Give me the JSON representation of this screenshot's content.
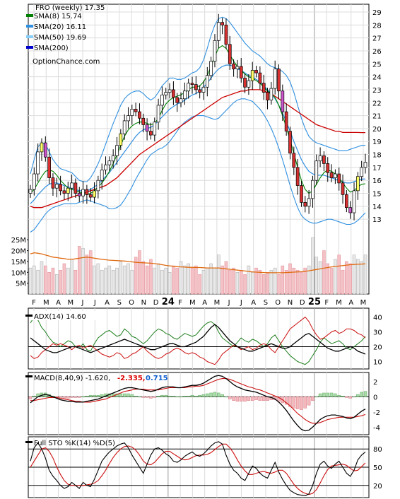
{
  "chart_data": {
    "type": "line",
    "title": "FRO (weekly) 17.35",
    "watermark": "OptionChance.com",
    "price_panel": {
      "legend": [
        {
          "label": "SMA(8) 15.74",
          "color": "#008000"
        },
        {
          "label": "SMA(20) 16.11",
          "color": "#2f8fe0"
        },
        {
          "label": "SMA(50) 19.69",
          "color": "#87cefa"
        },
        {
          "label": "SMA(200)",
          "color": "#0000cc"
        }
      ],
      "y_ticks": [
        "29",
        "28",
        "27",
        "26",
        "25",
        "24",
        "23",
        "22",
        "21",
        "20",
        "19",
        "18",
        "17",
        "16",
        "15",
        "14",
        "13"
      ],
      "x_labels": [
        "F",
        "M",
        "A",
        "M",
        "J",
        "J",
        "A",
        "S",
        "O",
        "N",
        "D",
        "24",
        "F",
        "M",
        "A",
        "M",
        "J",
        "J",
        "A",
        "S",
        "O",
        "N",
        "D",
        "25",
        "F",
        "M",
        "A",
        "M"
      ],
      "close_path": [
        15.3,
        16.5,
        18.2,
        18.9,
        17.8,
        16.2,
        15.4,
        15.7,
        15.2,
        15.0,
        15.4,
        15.8,
        15.0,
        14.8,
        15.3,
        14.9,
        14.7,
        15.2,
        16.0,
        16.8,
        17.2,
        17.5,
        17.9,
        18.7,
        19.6,
        20.6,
        21.0,
        21.5,
        21.3,
        20.8,
        20.3,
        19.8,
        19.5,
        20.5,
        21.8,
        22.6,
        22.8,
        23.0,
        22.4,
        22.0,
        22.3,
        22.9,
        23.5,
        23.4,
        23.0,
        22.8,
        23.2,
        24.1,
        25.2,
        26.8,
        28.2,
        28.0,
        26.5,
        25.0,
        24.6,
        24.8,
        23.9,
        23.2,
        23.7,
        24.5,
        24.3,
        23.5,
        22.8,
        22.2,
        23.1,
        24.6,
        22.9,
        21.3,
        19.8,
        18.1,
        17.0,
        15.6,
        14.3,
        14.0,
        14.6,
        16.0,
        17.5,
        17.9,
        17.3,
        16.6,
        16.2,
        16.5,
        15.8,
        14.9,
        13.9,
        13.5,
        15.2,
        16.3,
        17.0,
        17.4
      ],
      "sma8": [
        15.0,
        15.3,
        15.8,
        16.3,
        16.7,
        16.8,
        16.7,
        16.4,
        16.0,
        15.7,
        15.4,
        15.3,
        15.2,
        15.1,
        15.0,
        14.9,
        15.0,
        15.2,
        15.5,
        15.8,
        16.2,
        16.7,
        17.3,
        18.0,
        18.7,
        19.4,
        19.9,
        20.2,
        20.4,
        20.5,
        20.5,
        20.4,
        20.3,
        20.4,
        20.8,
        21.4,
        21.9,
        22.2,
        22.4,
        22.5,
        22.6,
        22.8,
        23.0,
        23.2,
        23.2,
        23.3,
        23.6,
        24.1,
        24.8,
        25.6,
        26.2,
        26.4,
        26.2,
        25.7,
        25.2,
        24.8,
        24.5,
        24.2,
        24.0,
        23.9,
        23.7,
        23.5,
        23.2,
        22.9,
        22.7,
        22.4,
        21.8,
        21.0,
        20.1,
        19.1,
        18.1,
        17.0,
        16.0,
        15.3,
        15.0,
        15.2,
        15.7,
        16.2,
        16.6,
        16.8,
        16.7,
        16.5,
        16.2,
        15.8,
        15.4,
        15.1,
        15.2,
        15.5,
        15.7,
        15.74
      ],
      "sma20": [
        14.2,
        14.5,
        14.9,
        15.2,
        15.5,
        15.7,
        15.8,
        15.8,
        15.7,
        15.6,
        15.5,
        15.4,
        15.3,
        15.2,
        15.2,
        15.2,
        15.3,
        15.5,
        15.7,
        16.0,
        16.3,
        16.6,
        17.0,
        17.4,
        17.8,
        18.2,
        18.6,
        19.0,
        19.4,
        19.7,
        19.9,
        20.0,
        20.1,
        20.3,
        20.6,
        20.9,
        21.2,
        21.5,
        21.7,
        21.9,
        22.0,
        22.2,
        22.4,
        22.6,
        22.7,
        22.9,
        23.2,
        23.5,
        23.9,
        24.3,
        24.6,
        24.8,
        24.9,
        24.9,
        24.8,
        24.6,
        24.5,
        24.3,
        24.1,
        24.0,
        23.8,
        23.6,
        23.3,
        23.0,
        22.7,
        22.3,
        21.8,
        21.2,
        20.5,
        19.8,
        19.0,
        18.3,
        17.6,
        17.1,
        16.7,
        16.5,
        16.4,
        16.4,
        16.4,
        16.3,
        16.2,
        16.1,
        16.0,
        15.9,
        15.8,
        15.8,
        15.9,
        16.0,
        16.1,
        16.11
      ],
      "sma50": [
        14.0,
        13.9,
        13.9,
        13.9,
        14.0,
        14.1,
        14.2,
        14.3,
        14.4,
        14.5,
        14.6,
        14.7,
        14.8,
        14.9,
        15.0,
        15.1,
        15.2,
        15.3,
        15.4,
        15.5,
        15.6,
        15.8,
        16.0,
        16.2,
        16.5,
        16.8,
        17.1,
        17.4,
        17.7,
        18.0,
        18.2,
        18.4,
        18.6,
        18.8,
        19.0,
        19.2,
        19.4,
        19.6,
        19.8,
        20.0,
        20.2,
        20.4,
        20.6,
        20.8,
        21.0,
        21.2,
        21.4,
        21.6,
        21.8,
        22.0,
        22.2,
        22.4,
        22.5,
        22.6,
        22.7,
        22.8,
        22.9,
        22.9,
        23.0,
        23.0,
        23.0,
        23.0,
        22.9,
        22.8,
        22.7,
        22.5,
        22.3,
        22.1,
        21.9,
        21.7,
        21.5,
        21.3,
        21.1,
        20.9,
        20.7,
        20.5,
        20.3,
        20.2,
        20.1,
        20.0,
        19.9,
        19.8,
        19.8,
        19.7,
        19.7,
        19.7,
        19.7,
        19.7,
        19.69,
        19.69
      ],
      "bb_upper": [
        16.5,
        17.6,
        18.6,
        18.9,
        18.8,
        18.2,
        17.6,
        17.2,
        16.9,
        16.8,
        16.7,
        16.6,
        16.3,
        16.0,
        15.9,
        15.9,
        16.2,
        16.7,
        17.3,
        18.0,
        18.8,
        19.6,
        20.4,
        21.1,
        21.8,
        22.3,
        22.6,
        22.8,
        22.9,
        22.9,
        22.7,
        22.4,
        22.2,
        22.4,
        22.8,
        23.3,
        23.6,
        23.9,
        23.9,
        23.8,
        23.8,
        23.9,
        24.1,
        24.3,
        24.4,
        24.7,
        25.3,
        26.2,
        27.2,
        28.0,
        28.5,
        28.6,
        28.5,
        28.2,
        27.8,
        27.4,
        27.0,
        26.6,
        26.3,
        26.0,
        25.8,
        25.6,
        25.3,
        25.0,
        24.8,
        24.7,
        24.6,
        24.4,
        24.1,
        23.6,
        22.8,
        21.8,
        20.8,
        20.0,
        19.4,
        19.1,
        18.9,
        18.8,
        18.7,
        18.6,
        18.5,
        18.4,
        18.3,
        18.3,
        18.3,
        18.4,
        18.5,
        18.6,
        18.7,
        18.7
      ],
      "bb_lower": [
        12.0,
        12.2,
        12.6,
        13.0,
        13.4,
        13.7,
        13.9,
        14.0,
        14.1,
        14.2,
        14.2,
        14.2,
        14.2,
        14.3,
        14.4,
        14.5,
        14.4,
        14.3,
        14.2,
        14.1,
        14.0,
        13.8,
        13.8,
        13.9,
        14.1,
        14.5,
        15.0,
        15.5,
        16.1,
        16.6,
        17.1,
        17.6,
        18.0,
        18.2,
        18.4,
        18.5,
        18.7,
        19.0,
        19.4,
        19.8,
        20.2,
        20.5,
        20.7,
        20.9,
        21.0,
        21.0,
        21.0,
        20.9,
        20.8,
        20.7,
        20.8,
        21.1,
        21.4,
        21.7,
        22.0,
        22.2,
        22.3,
        22.3,
        22.2,
        22.1,
        21.8,
        21.5,
        21.1,
        20.6,
        20.0,
        19.3,
        18.5,
        17.6,
        16.6,
        15.6,
        14.7,
        13.9,
        13.3,
        13.0,
        12.8,
        12.7,
        12.7,
        12.8,
        12.9,
        13.0,
        13.0,
        12.9,
        12.8,
        12.7,
        12.6,
        12.6,
        12.7,
        12.9,
        13.2,
        13.5
      ]
    },
    "volume_panel": {
      "y_ticks": [
        "25M",
        "20M",
        "15M",
        "10M",
        "5M"
      ],
      "values_millions": [
        12,
        13,
        11,
        15,
        13,
        10,
        12,
        9,
        11,
        14,
        12,
        16,
        11,
        22,
        21,
        18,
        20,
        13,
        14,
        11,
        12,
        13,
        11,
        12,
        15,
        13,
        14,
        11,
        17,
        20,
        15,
        13,
        16,
        12,
        14,
        11,
        12,
        10,
        13,
        12,
        15,
        13,
        14,
        12,
        13,
        9,
        11,
        12,
        14,
        12,
        18,
        13,
        15,
        11,
        12,
        10,
        11,
        9,
        13,
        10,
        12,
        11,
        9,
        10,
        11,
        12,
        9,
        13,
        11,
        14,
        12,
        11,
        10,
        12,
        13,
        26,
        17,
        15,
        20,
        14,
        12,
        16,
        18,
        11,
        15,
        14,
        18,
        16,
        15,
        18
      ],
      "avg_millions": [
        18.5,
        19.0,
        18.8,
        18.5,
        18.0,
        17.5,
        17.0,
        16.8,
        16.5,
        16.3,
        16.0,
        16.0,
        16.2,
        16.5,
        16.8,
        17.0,
        16.8,
        16.5,
        16.2,
        16.0,
        15.8,
        15.6,
        15.5,
        15.4,
        15.3,
        15.2,
        15.0,
        14.8,
        14.6,
        14.5,
        14.4,
        14.3,
        14.2,
        14.0,
        13.8,
        13.5,
        13.2,
        13.0,
        12.8,
        12.6,
        12.5,
        12.4,
        12.3,
        12.3,
        12.2,
        12.2,
        12.1,
        12.0,
        12.0,
        12.0,
        12.0,
        11.8,
        11.6,
        11.4,
        11.2,
        11.0,
        10.8,
        10.6,
        10.4,
        10.2,
        10.1,
        10.0,
        9.9,
        9.8,
        9.8,
        9.8,
        9.8,
        9.8,
        9.9,
        10.0,
        10.1,
        10.2,
        10.3,
        10.5,
        10.7,
        11.0,
        11.3,
        11.6,
        11.9,
        12.2,
        12.5,
        12.7,
        12.9,
        13.1,
        13.3,
        13.5,
        13.6,
        13.7,
        13.8,
        13.9
      ]
    },
    "adx_panel": {
      "label": "ADX(14) 14.60",
      "y_ticks": [
        "40",
        "30",
        "20",
        "10"
      ],
      "adx": [
        26,
        24,
        22,
        20,
        18,
        17,
        16,
        16,
        17,
        18,
        19,
        20,
        20,
        19,
        18,
        17,
        16,
        17,
        18,
        19,
        20,
        21,
        22,
        23,
        24,
        25,
        24,
        23,
        22,
        21,
        20,
        19,
        18,
        18,
        19,
        20,
        21,
        22,
        22,
        21,
        20,
        20,
        21,
        22,
        23,
        25,
        27,
        30,
        33,
        35,
        33,
        30,
        27,
        24,
        22,
        20,
        19,
        18,
        17,
        17,
        18,
        19,
        20,
        21,
        22,
        21,
        20,
        19,
        19,
        20,
        22,
        24,
        26,
        28,
        29,
        27,
        25,
        23,
        21,
        19,
        18,
        17,
        17,
        18,
        19,
        20,
        19,
        17,
        16,
        15
      ],
      "plus_di": [
        36,
        40,
        38,
        33,
        30,
        26,
        23,
        22,
        20,
        22,
        24,
        23,
        20,
        19,
        22,
        18,
        17,
        22,
        26,
        28,
        30,
        31,
        29,
        27,
        28,
        32,
        30,
        27,
        26,
        24,
        22,
        24,
        27,
        30,
        32,
        31,
        29,
        28,
        26,
        25,
        27,
        29,
        28,
        27,
        28,
        31,
        34,
        36,
        37,
        35,
        30,
        26,
        24,
        22,
        20,
        23,
        26,
        24,
        23,
        25,
        24,
        22,
        20,
        22,
        26,
        28,
        24,
        20,
        17,
        14,
        12,
        10,
        9,
        8,
        10,
        14,
        18,
        23,
        26,
        24,
        22,
        23,
        24,
        22,
        19,
        18,
        20,
        22,
        24,
        27
      ],
      "minus_di": [
        14,
        12,
        13,
        16,
        18,
        20,
        22,
        21,
        22,
        21,
        20,
        18,
        20,
        21,
        19,
        20,
        21,
        19,
        17,
        15,
        14,
        13,
        14,
        16,
        15,
        12,
        13,
        15,
        16,
        18,
        20,
        17,
        15,
        13,
        12,
        13,
        15,
        16,
        18,
        19,
        18,
        16,
        15,
        16,
        15,
        13,
        12,
        10,
        9,
        8,
        11,
        15,
        17,
        19,
        21,
        20,
        18,
        19,
        20,
        18,
        19,
        21,
        22,
        21,
        18,
        16,
        20,
        24,
        28,
        32,
        34,
        36,
        38,
        40,
        37,
        32,
        28,
        25,
        26,
        28,
        30,
        31,
        29,
        30,
        32,
        32,
        31,
        29,
        28,
        26
      ]
    },
    "macd_panel": {
      "label": "MACD(8,40,9) -1.620,",
      "signal_label": "-2.335,",
      "hist_label": "0.715",
      "y_ticks": [
        "2",
        "0",
        "-2",
        "-4"
      ],
      "macd": [
        -0.8,
        -0.4,
        0.0,
        0.2,
        0.3,
        0.2,
        0.0,
        -0.2,
        -0.4,
        -0.5,
        -0.6,
        -0.6,
        -0.7,
        -0.7,
        -0.7,
        -0.6,
        -0.5,
        -0.4,
        -0.3,
        -0.1,
        0.1,
        0.3,
        0.5,
        0.7,
        0.9,
        1.1,
        1.2,
        1.2,
        1.1,
        1.0,
        0.9,
        0.8,
        0.7,
        0.8,
        1.0,
        1.2,
        1.3,
        1.3,
        1.3,
        1.2,
        1.2,
        1.3,
        1.4,
        1.5,
        1.5,
        1.6,
        1.8,
        2.1,
        2.4,
        2.7,
        2.8,
        2.7,
        2.4,
        2.0,
        1.6,
        1.3,
        1.1,
        0.9,
        0.8,
        0.7,
        0.6,
        0.4,
        0.2,
        0.0,
        -0.1,
        -0.3,
        -0.7,
        -1.2,
        -1.8,
        -2.5,
        -3.2,
        -3.8,
        -4.3,
        -4.5,
        -4.4,
        -4.0,
        -3.5,
        -3.0,
        -2.7,
        -2.5,
        -2.4,
        -2.4,
        -2.5,
        -2.6,
        -2.8,
        -2.9,
        -2.7,
        -2.3,
        -1.9,
        -1.62
      ],
      "signal": [
        -0.5,
        -0.5,
        -0.4,
        -0.3,
        -0.2,
        -0.1,
        -0.1,
        -0.1,
        -0.2,
        -0.3,
        -0.4,
        -0.5,
        -0.6,
        -0.6,
        -0.7,
        -0.7,
        -0.7,
        -0.6,
        -0.5,
        -0.4,
        -0.3,
        -0.1,
        0.1,
        0.3,
        0.5,
        0.7,
        0.8,
        0.9,
        1.0,
        1.0,
        1.0,
        0.9,
        0.9,
        0.9,
        0.9,
        1.0,
        1.1,
        1.2,
        1.2,
        1.2,
        1.2,
        1.2,
        1.3,
        1.3,
        1.4,
        1.4,
        1.5,
        1.7,
        1.9,
        2.1,
        2.3,
        2.4,
        2.4,
        2.3,
        2.1,
        1.9,
        1.7,
        1.5,
        1.3,
        1.2,
        1.0,
        0.9,
        0.7,
        0.5,
        0.3,
        0.1,
        -0.1,
        -0.4,
        -0.8,
        -1.2,
        -1.7,
        -2.2,
        -2.6,
        -3.0,
        -3.3,
        -3.5,
        -3.5,
        -3.4,
        -3.2,
        -3.0,
        -2.9,
        -2.8,
        -2.7,
        -2.7,
        -2.7,
        -2.7,
        -2.7,
        -2.6,
        -2.5,
        -2.335
      ]
    },
    "sto_panel": {
      "label": "Full STO %K(14) %D(5)",
      "y_ticks": [
        "80",
        "50",
        "20"
      ],
      "k": [
        60,
        82,
        90,
        80,
        65,
        45,
        35,
        28,
        20,
        15,
        18,
        25,
        20,
        15,
        25,
        20,
        18,
        30,
        45,
        60,
        68,
        75,
        80,
        85,
        88,
        90,
        82,
        70,
        60,
        50,
        40,
        55,
        70,
        80,
        82,
        78,
        72,
        68,
        60,
        58,
        62,
        68,
        72,
        75,
        70,
        68,
        72,
        78,
        85,
        90,
        92,
        88,
        70,
        55,
        45,
        40,
        32,
        28,
        40,
        52,
        48,
        40,
        35,
        32,
        45,
        58,
        42,
        30,
        20,
        12,
        8,
        5,
        4,
        3,
        6,
        20,
        40,
        55,
        60,
        52,
        48,
        55,
        60,
        50,
        40,
        35,
        45,
        62,
        70,
        75
      ],
      "d": [
        50,
        60,
        70,
        80,
        82,
        76,
        65,
        50,
        38,
        28,
        22,
        20,
        20,
        20,
        20,
        21,
        22,
        24,
        28,
        36,
        45,
        56,
        66,
        74,
        80,
        84,
        85,
        83,
        78,
        70,
        60,
        55,
        54,
        58,
        65,
        72,
        76,
        76,
        72,
        68,
        64,
        62,
        63,
        66,
        69,
        70,
        70,
        71,
        74,
        79,
        84,
        88,
        88,
        82,
        73,
        62,
        52,
        44,
        38,
        38,
        40,
        42,
        43,
        41,
        40,
        42,
        45,
        45,
        40,
        31,
        22,
        15,
        10,
        7,
        5,
        7,
        13,
        24,
        36,
        46,
        52,
        53,
        54,
        55,
        53,
        48,
        44,
        45,
        51,
        57
      ]
    }
  }
}
